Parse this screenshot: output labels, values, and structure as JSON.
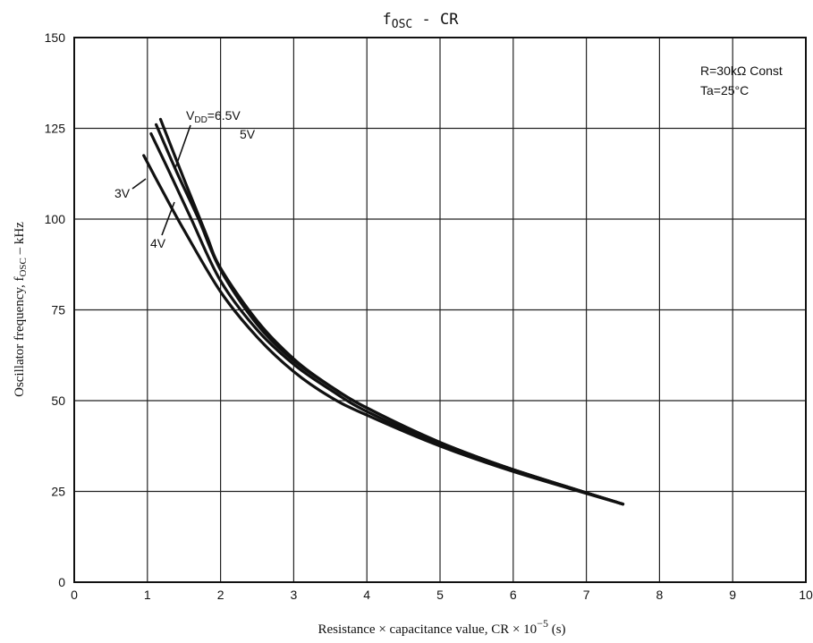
{
  "chart_data": {
    "type": "line",
    "title": {
      "main": "f",
      "sub": "OSC",
      "rest": " - CR"
    },
    "xlabel": {
      "pre": "Resistance × capacitance value, CR × 10",
      "sup": "−5",
      "post": " (s)"
    },
    "ylabel": {
      "pre": "Oscillator frequency, f",
      "sub": "OSC",
      "post": " – kHz"
    },
    "xlim": [
      0,
      10
    ],
    "ylim": [
      0,
      150
    ],
    "xticks": [
      "0",
      "1",
      "2",
      "3",
      "4",
      "5",
      "6",
      "7",
      "8",
      "9",
      "10"
    ],
    "yticks": [
      "0",
      "25",
      "50",
      "75",
      "100",
      "125",
      "150"
    ],
    "grid": true,
    "conditions": {
      "line1": "R=30kΩ  Const",
      "line2": "Ta=25°C"
    },
    "series": [
      {
        "name": "3V",
        "x": [
          0.95,
          1.2,
          1.5,
          2.0,
          2.5,
          3.0,
          3.5,
          4.0,
          5.0,
          6.0,
          7.5
        ],
        "y": [
          117.5,
          108,
          97,
          80,
          67.5,
          58,
          51,
          46,
          37.5,
          30.5,
          21.5
        ]
      },
      {
        "name": "4V",
        "x": [
          1.05,
          1.3,
          1.6,
          2.0,
          2.5,
          3.0,
          3.5,
          4.0,
          5.0,
          6.0,
          7.5
        ],
        "y": [
          123.5,
          113,
          100,
          83,
          69.5,
          60,
          53,
          47,
          38,
          31,
          21.5
        ]
      },
      {
        "name": "5V",
        "x": [
          1.12,
          1.4,
          1.7,
          2.0,
          2.5,
          3.0,
          3.5,
          4.0,
          5.0,
          6.0,
          7.5
        ],
        "y": [
          126,
          113,
          100,
          86,
          71,
          61,
          54,
          48,
          38.5,
          31,
          21.5
        ]
      },
      {
        "name": "6.5V",
        "x": [
          1.18,
          1.5,
          1.8,
          2.0,
          2.5,
          3.0,
          3.5,
          4.0,
          5.0,
          6.0,
          7.5
        ],
        "y": [
          127.5,
          111,
          96,
          86.5,
          72,
          61.5,
          54,
          48,
          38.5,
          31,
          21.5
        ]
      }
    ],
    "labels": {
      "vdd": "V",
      "vdd_sub": "DD",
      "vdd_val": "=6.5V",
      "v5": "5V",
      "v3": "3V",
      "v4": "4V"
    }
  }
}
